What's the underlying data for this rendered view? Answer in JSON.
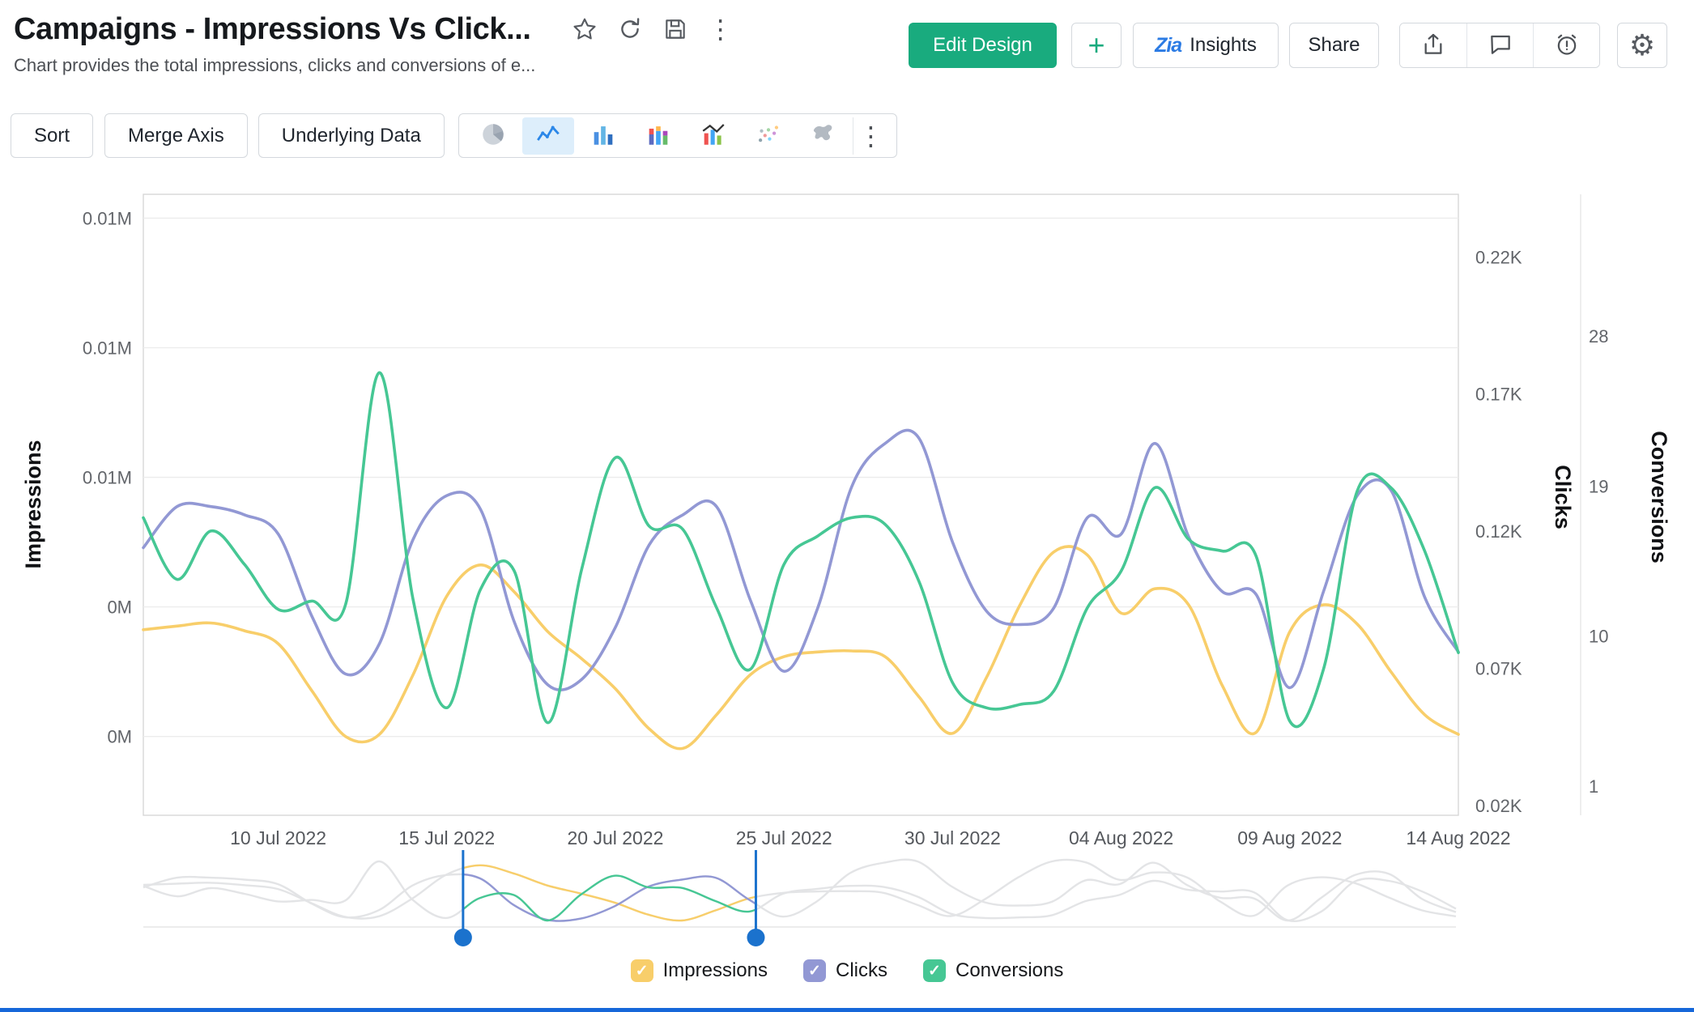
{
  "header": {
    "title": "Campaigns - Impressions Vs Click...",
    "subtitle": "Chart provides the total impressions, clicks and conversions of e...",
    "actions": {
      "edit_design": "Edit Design",
      "insights": "Insights",
      "share": "Share"
    }
  },
  "glyphs": {
    "kebab": "⋮",
    "gear": "⚙",
    "plus": "+",
    "check": "✓",
    "zia": "Zia"
  },
  "toolbar": {
    "sort": "Sort",
    "merge_axis": "Merge Axis",
    "underlying_data": "Underlying Data",
    "chart_types": [
      "pie",
      "line",
      "column",
      "stacked-column",
      "combo",
      "scatter",
      "map"
    ],
    "selected_chart_type": "line"
  },
  "chart_data": {
    "type": "line",
    "n_points": 40,
    "x_range_days": 39,
    "x_tick_labels": [
      "10 Jul 2022",
      "15 Jul 2022",
      "20 Jul 2022",
      "25 Jul 2022",
      "30 Jul 2022",
      "04 Aug 2022",
      "09 Aug 2022",
      "14 Aug 2022"
    ],
    "x_tick_positions": [
      4,
      9,
      14,
      19,
      24,
      29,
      34,
      39
    ],
    "grid": true,
    "axes": {
      "impressions": {
        "title": "Impressions",
        "side": "left",
        "tick_labels": [
          "0.01M",
          "0.01M",
          "0.01M",
          "0M",
          "0M"
        ],
        "grid_values": [
          0.012,
          0.0095,
          0.007,
          0.0045,
          0.002
        ],
        "render_min": 0.00048,
        "render_max": 0.01246
      },
      "clicks": {
        "title": "Clicks",
        "side": "right",
        "tick_labels": [
          "0.22K",
          "0.17K",
          "0.12K",
          "0.07K",
          "0.02K"
        ],
        "tick_values": [
          0.22,
          0.17,
          0.12,
          0.07,
          0.02
        ],
        "render_min": 0.0165,
        "render_max": 0.2428
      },
      "conversions": {
        "title": "Conversions",
        "side": "right-outer",
        "tick_labels": [
          "28",
          "19",
          "10",
          "1"
        ],
        "tick_values": [
          28,
          19,
          10,
          1
        ],
        "render_min": -0.75,
        "render_max": 36.5
      }
    },
    "series": [
      {
        "name": "Impressions",
        "axis": "impressions",
        "color": "#F8CE6A",
        "unit": "M",
        "values": [
          0.00406,
          0.00413,
          0.00419,
          0.00404,
          0.00379,
          0.00288,
          0.002,
          0.00204,
          0.00319,
          0.00471,
          0.00531,
          0.00479,
          0.00402,
          0.0035,
          0.00292,
          0.00215,
          0.00177,
          0.00242,
          0.00319,
          0.00354,
          0.00363,
          0.00365,
          0.00354,
          0.00277,
          0.00206,
          0.00313,
          0.00454,
          0.00556,
          0.0055,
          0.00438,
          0.00485,
          0.00454,
          0.00298,
          0.00208,
          0.00402,
          0.00454,
          0.00417,
          0.00325,
          0.00242,
          0.00204
        ]
      },
      {
        "name": "Clicks",
        "axis": "clicks",
        "color": "#9298D4",
        "unit": "K",
        "values": [
          0.114,
          0.129,
          0.129,
          0.126,
          0.119,
          0.089,
          0.068,
          0.079,
          0.117,
          0.133,
          0.128,
          0.087,
          0.064,
          0.066,
          0.085,
          0.115,
          0.126,
          0.129,
          0.095,
          0.069,
          0.092,
          0.136,
          0.152,
          0.154,
          0.116,
          0.091,
          0.086,
          0.092,
          0.125,
          0.119,
          0.152,
          0.118,
          0.098,
          0.097,
          0.063,
          0.098,
          0.133,
          0.135,
          0.096,
          0.076
        ]
      },
      {
        "name": "Conversions",
        "axis": "conversions",
        "color": "#46C794",
        "unit": "count",
        "values": [
          17.1,
          13.4,
          16.3,
          14.3,
          11.6,
          12.1,
          11.9,
          25.8,
          12.2,
          5.7,
          12.8,
          13.9,
          4.8,
          14.0,
          20.7,
          16.6,
          16.4,
          11.7,
          8.0,
          14.3,
          16.0,
          17.1,
          16.7,
          13.3,
          7.2,
          5.7,
          5.9,
          6.7,
          11.7,
          13.9,
          18.9,
          15.8,
          15.1,
          14.8,
          4.9,
          8.0,
          18.7,
          18.9,
          15.1,
          9.0
        ]
      }
    ],
    "brush": {
      "start_day": 9.5,
      "end_day": 18.2,
      "handle_color": "#1b72cd"
    }
  },
  "legend": [
    {
      "label": "Impressions",
      "color": "#F8CE6A"
    },
    {
      "label": "Clicks",
      "color": "#9298D4"
    },
    {
      "label": "Conversions",
      "color": "#46C794"
    }
  ]
}
